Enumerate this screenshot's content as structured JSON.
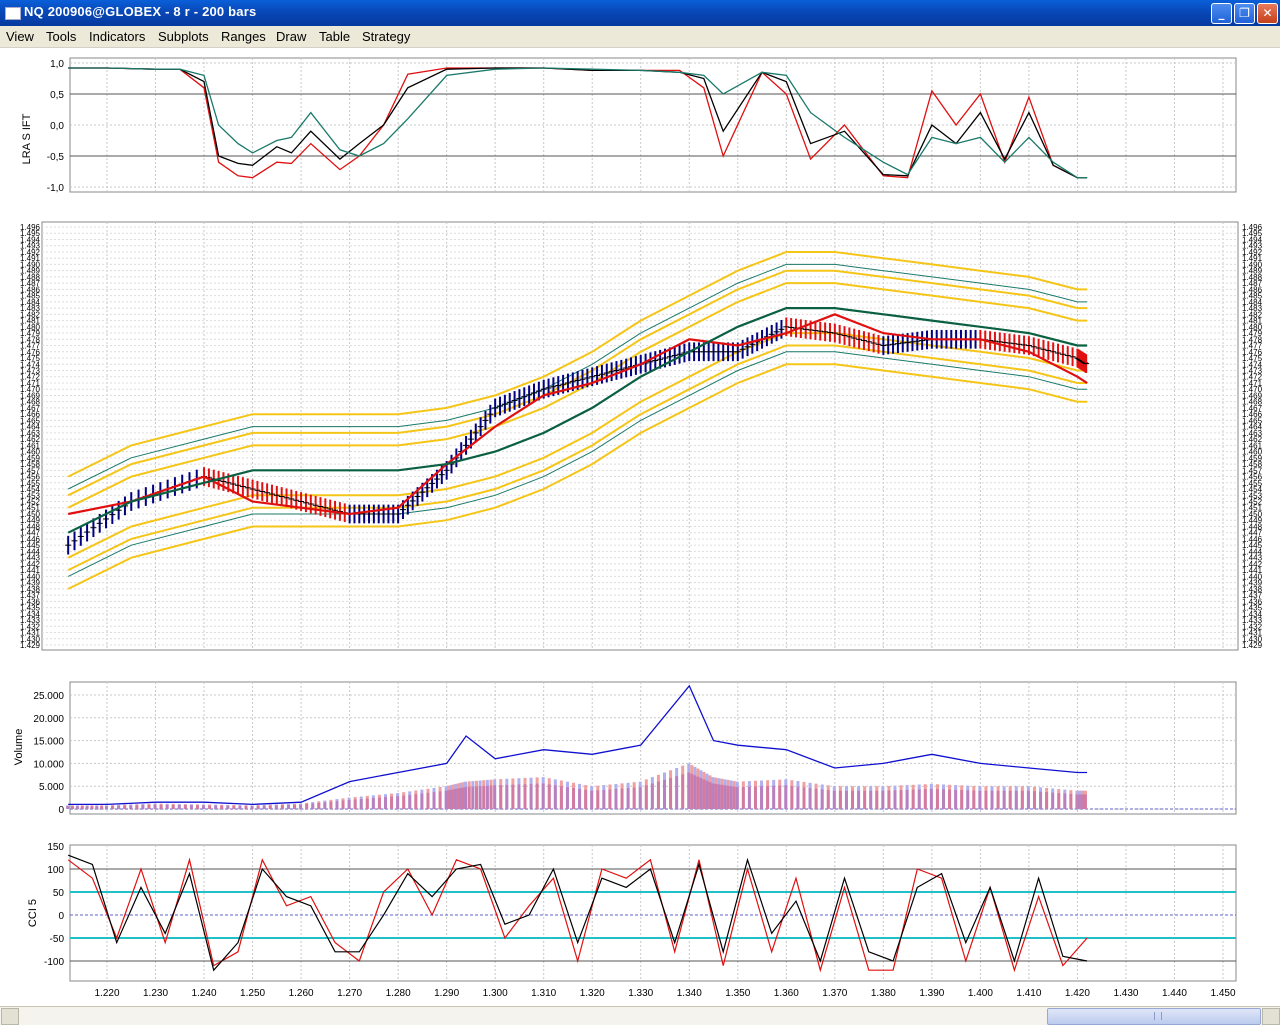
{
  "window": {
    "title": "NQ 200906@GLOBEX - 8 r - 200 bars"
  },
  "menu": [
    "View",
    "Tools",
    "Indicators",
    "Subplots",
    "Ranges",
    "Draw",
    "Table",
    "Strategy"
  ],
  "x_axis": {
    "ticks": [
      "1.220",
      "1.230",
      "1.240",
      "1.250",
      "1.260",
      "1.270",
      "1.280",
      "1.290",
      "1.300",
      "1.310",
      "1.320",
      "1.330",
      "1.340",
      "1.350",
      "1.360",
      "1.370",
      "1.380",
      "1.390",
      "1.400",
      "1.410",
      "1.420",
      "1.430",
      "1.440",
      "1.450"
    ]
  },
  "panels": {
    "lra": {
      "ylabel": "LRA S IFT",
      "ticks": [
        "1,0",
        "0,5",
        "0,0",
        "-0,5",
        "-1,0"
      ]
    },
    "price": {
      "ticks": [
        "1.496",
        "1.495",
        "1.494",
        "1.493",
        "1.492",
        "1.491",
        "1.490",
        "1.489",
        "1.488",
        "1.487",
        "1.486",
        "1.485",
        "1.484",
        "1.483",
        "1.482",
        "1.481",
        "1.480",
        "1.479",
        "1.478",
        "1.477",
        "1.476",
        "1.475",
        "1.474",
        "1.473",
        "1.472",
        "1.471",
        "1.470",
        "1.469",
        "1.468",
        "1.467",
        "1.466",
        "1.465",
        "1.464",
        "1.463",
        "1.462",
        "1.461",
        "1.460",
        "1.459",
        "1.458",
        "1.457",
        "1.456",
        "1.455",
        "1.454",
        "1.453",
        "1.452",
        "1.451",
        "1.450",
        "1.449",
        "1.448",
        "1.447",
        "1.446",
        "1.445",
        "1.444",
        "1.443",
        "1.442",
        "1.441",
        "1.440",
        "1.439",
        "1.438",
        "1.437",
        "1.436",
        "1.435",
        "1.434",
        "1.433",
        "1.432",
        "1.431",
        "1.430",
        "1.429"
      ]
    },
    "volume": {
      "ylabel": "Volume",
      "ticks": [
        "25.000",
        "20.000",
        "15.000",
        "10.000",
        "5.000",
        "0"
      ]
    },
    "cci": {
      "ylabel": "CCI 5",
      "ticks": [
        "150",
        "100",
        "50",
        "0",
        "-50",
        "-100"
      ]
    }
  },
  "colors": {
    "red": "#e01010",
    "black": "#000000",
    "teal": "#1a7a6a",
    "gold": "#f5c518",
    "blue": "#1010d0",
    "navy": "#000080",
    "cyan": "#20c0c8",
    "darkgreen": "#0a6040"
  },
  "chart_data": [
    {
      "type": "line",
      "ylabel": "LRA S IFT",
      "ylim": [
        -1.0,
        1.0
      ],
      "grid": true,
      "x": [
        1.212,
        1.22,
        1.23,
        1.235,
        1.24,
        1.243,
        1.247,
        1.25,
        1.255,
        1.258,
        1.262,
        1.268,
        1.272,
        1.277,
        1.282,
        1.29,
        1.3,
        1.31,
        1.32,
        1.33,
        1.338,
        1.343,
        1.347,
        1.355,
        1.36,
        1.365,
        1.372,
        1.38,
        1.385,
        1.39,
        1.395,
        1.4,
        1.405,
        1.41,
        1.415,
        1.42,
        1.422
      ],
      "series": [
        {
          "name": "",
          "values": [
            0.92,
            0.92,
            0.9,
            0.9,
            0.6,
            -0.6,
            -0.82,
            -0.85,
            -0.6,
            -0.62,
            -0.3,
            -0.72,
            -0.5,
            0.0,
            0.82,
            0.92,
            0.92,
            0.92,
            0.88,
            0.88,
            0.88,
            0.6,
            -0.5,
            0.85,
            0.5,
            -0.55,
            0.0,
            -0.82,
            -0.85,
            0.55,
            0.0,
            0.5,
            -0.6,
            0.45,
            -0.65,
            -0.85,
            -0.85
          ]
        },
        {
          "name": "",
          "values": [
            0.92,
            0.92,
            0.9,
            0.9,
            0.7,
            -0.5,
            -0.62,
            -0.65,
            -0.35,
            -0.45,
            -0.1,
            -0.55,
            -0.3,
            0.0,
            0.6,
            0.9,
            0.92,
            0.92,
            0.88,
            0.88,
            0.85,
            0.75,
            -0.1,
            0.85,
            0.7,
            -0.3,
            -0.1,
            -0.8,
            -0.82,
            0.0,
            -0.3,
            0.2,
            -0.55,
            0.2,
            -0.65,
            -0.85,
            -0.85
          ]
        },
        {
          "name": "",
          "values": [
            0.92,
            0.92,
            0.9,
            0.9,
            0.8,
            0.0,
            -0.3,
            -0.45,
            -0.25,
            -0.2,
            0.2,
            -0.4,
            -0.5,
            -0.3,
            0.1,
            0.8,
            0.9,
            0.92,
            0.9,
            0.88,
            0.85,
            0.8,
            0.5,
            0.85,
            0.8,
            0.2,
            -0.2,
            -0.6,
            -0.8,
            -0.2,
            -0.3,
            -0.2,
            -0.6,
            -0.2,
            -0.6,
            -0.85,
            -0.85
          ]
        }
      ]
    },
    {
      "type": "line",
      "ylim": [
        1429,
        1496
      ],
      "grid": true,
      "x": [
        1.212,
        1.225,
        1.24,
        1.25,
        1.26,
        1.27,
        1.28,
        1.29,
        1.3,
        1.31,
        1.32,
        1.33,
        1.34,
        1.35,
        1.36,
        1.37,
        1.38,
        1.39,
        1.4,
        1.41,
        1.42,
        1.422
      ],
      "series": [
        {
          "name": "",
          "values": [
            1450,
            1452,
            1456,
            1452,
            1451,
            1450,
            1451,
            1458,
            1464,
            1469,
            1471,
            1474,
            1478,
            1477,
            1479,
            1482,
            1479,
            1478,
            1478,
            1476,
            1472,
            1471
          ]
        },
        {
          "name": "",
          "values": [
            1445,
            1452,
            1456,
            1454,
            1452,
            1450,
            1450,
            1457,
            1467,
            1470,
            1472,
            1474,
            1476,
            1476,
            1480,
            1479,
            1477,
            1478,
            1478,
            1477,
            1475,
            1474
          ]
        },
        {
          "name": "",
          "values": [
            1447,
            1452,
            1455,
            1457,
            1457,
            1457,
            1457,
            1458,
            1460,
            1463,
            1467,
            1472,
            1476,
            1480,
            1483,
            1483,
            1482,
            1481,
            1480,
            1479,
            1477,
            1477
          ]
        }
      ]
    },
    {
      "type": "bar",
      "ylabel": "Volume",
      "ylim": [
        0,
        27000
      ],
      "grid": true,
      "x": [
        1.212,
        1.22,
        1.23,
        1.24,
        1.25,
        1.26,
        1.27,
        1.28,
        1.29,
        1.294,
        1.3,
        1.31,
        1.32,
        1.33,
        1.34,
        1.345,
        1.35,
        1.36,
        1.37,
        1.38,
        1.39,
        1.4,
        1.41,
        1.42,
        1.422
      ],
      "series": [
        {
          "name": "",
          "values": [
            800,
            800,
            1200,
            1000,
            800,
            1200,
            2500,
            3500,
            5000,
            6000,
            6500,
            7000,
            5000,
            6000,
            10000,
            7000,
            6000,
            6500,
            5000,
            5000,
            5500,
            5000,
            5000,
            4000,
            4000
          ]
        },
        {
          "name": "",
          "values": [
            1000,
            1000,
            1500,
            1500,
            1000,
            1500,
            6000,
            8000,
            10000,
            16000,
            11000,
            13000,
            12000,
            14000,
            27000,
            15000,
            14000,
            13000,
            9000,
            10000,
            12000,
            10000,
            9000,
            8000,
            8000
          ]
        }
      ]
    },
    {
      "type": "line",
      "ylabel": "CCI 5",
      "ylim": [
        -125,
        150
      ],
      "grid": true,
      "x": [
        1.212,
        1.217,
        1.222,
        1.227,
        1.232,
        1.237,
        1.242,
        1.247,
        1.252,
        1.257,
        1.262,
        1.267,
        1.272,
        1.277,
        1.282,
        1.287,
        1.292,
        1.297,
        1.302,
        1.307,
        1.312,
        1.317,
        1.322,
        1.327,
        1.332,
        1.337,
        1.342,
        1.347,
        1.352,
        1.357,
        1.362,
        1.367,
        1.372,
        1.377,
        1.382,
        1.387,
        1.392,
        1.397,
        1.402,
        1.407,
        1.412,
        1.417,
        1.422
      ],
      "series": [
        {
          "name": "",
          "values": [
            120,
            80,
            -50,
            100,
            -60,
            120,
            -110,
            -80,
            120,
            20,
            40,
            -60,
            -100,
            50,
            100,
            0,
            120,
            100,
            -50,
            20,
            80,
            -100,
            100,
            80,
            120,
            -80,
            120,
            -110,
            100,
            -80,
            80,
            -120,
            60,
            -120,
            -120,
            100,
            80,
            -100,
            60,
            -120,
            40,
            -110,
            -50
          ]
        },
        {
          "name": "",
          "values": [
            130,
            110,
            -60,
            60,
            -40,
            90,
            -120,
            -60,
            100,
            40,
            20,
            -80,
            -80,
            0,
            90,
            40,
            100,
            110,
            -20,
            0,
            100,
            -60,
            80,
            60,
            100,
            -60,
            110,
            -80,
            120,
            -40,
            30,
            -100,
            80,
            -80,
            -100,
            60,
            90,
            -60,
            60,
            -100,
            80,
            -90,
            -100
          ]
        }
      ]
    }
  ]
}
